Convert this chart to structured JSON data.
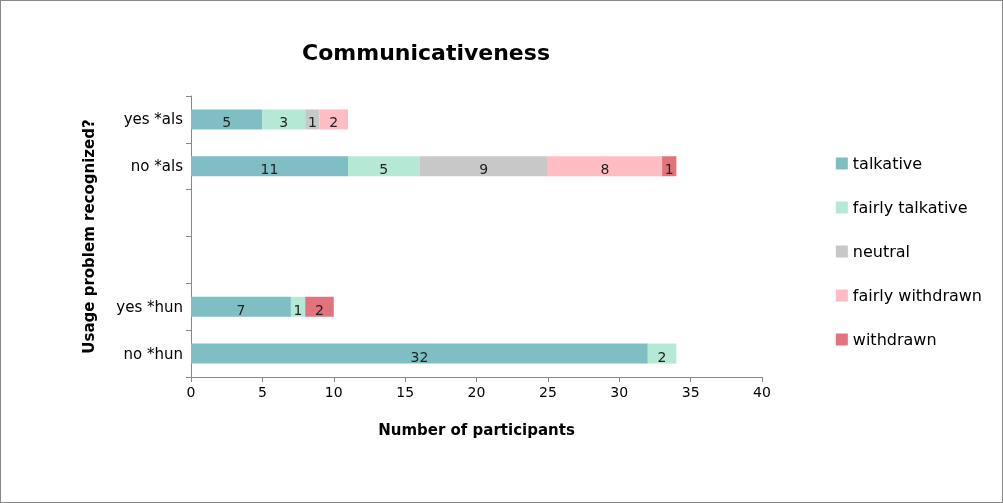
{
  "chart_data": {
    "type": "bar",
    "orientation": "horizontal",
    "stacked": true,
    "title": "Communicativeness",
    "xlabel": "Number of participants",
    "ylabel": "Usage problem recognized?",
    "categories": [
      "yes *als",
      "no *als",
      null,
      null,
      "yes *hun",
      "no *hun"
    ],
    "series": [
      {
        "name": "talkative",
        "color": "#7fbfc4",
        "values": [
          5,
          11,
          null,
          null,
          7,
          32
        ]
      },
      {
        "name": "fairly talkative",
        "color": "#b5e8d5",
        "values": [
          3,
          5,
          null,
          null,
          1,
          2
        ]
      },
      {
        "name": "neutral",
        "color": "#c8c8c8",
        "values": [
          1,
          9,
          null,
          null,
          null,
          null
        ]
      },
      {
        "name": "fairly withdrawn",
        "color": "#ffbcc2",
        "values": [
          2,
          8,
          null,
          null,
          null,
          null
        ]
      },
      {
        "name": "withdrawn",
        "color": "#e2737c",
        "values": [
          null,
          1,
          null,
          null,
          2,
          null
        ]
      }
    ],
    "xlim": [
      0,
      40
    ],
    "xticks": [
      0,
      5,
      10,
      15,
      20,
      25,
      30,
      35,
      40
    ],
    "grid": false,
    "legend": "right",
    "data_labels": true
  }
}
